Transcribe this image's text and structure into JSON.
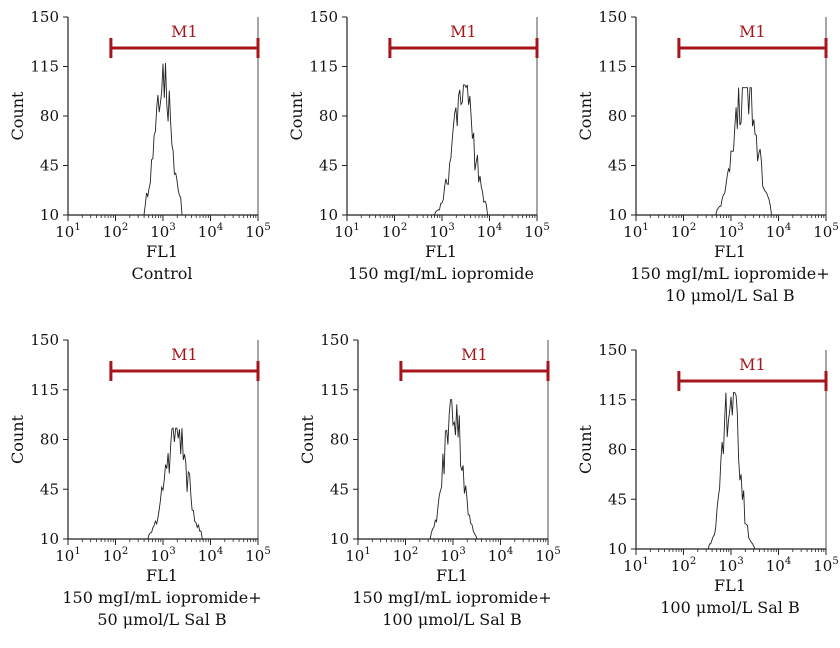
{
  "chart_data": [
    {
      "type": "histogram",
      "ylabel": "Count",
      "xlabel": "FL1",
      "caption": [
        "Control"
      ],
      "gate_label": "M1",
      "gate_range": [
        80,
        100000
      ],
      "xlim": [
        10,
        100000
      ],
      "xscale": "log",
      "ylim": [
        10,
        150
      ],
      "yticks": [
        10,
        45,
        80,
        115,
        150
      ],
      "xticks": [
        10,
        100,
        1000,
        10000,
        100000
      ],
      "xtick_labels": [
        {
          "base": "10",
          "exp": "1"
        },
        {
          "base": "10",
          "exp": "2"
        },
        {
          "base": "10",
          "exp": "3"
        },
        {
          "base": "10",
          "exp": "4"
        },
        {
          "base": "10",
          "exp": "5"
        }
      ],
      "peak_center": 1000,
      "peak_height": 118,
      "peak_width_decades": 0.17,
      "distribution_range": [
        400,
        2500
      ]
    },
    {
      "type": "histogram",
      "ylabel": "Count",
      "xlabel": "FL1",
      "caption": [
        "150 mgI/mL iopromide"
      ],
      "gate_label": "M1",
      "gate_range": [
        80,
        100000
      ],
      "xlim": [
        10,
        100000
      ],
      "xscale": "log",
      "ylim": [
        10,
        150
      ],
      "yticks": [
        10,
        45,
        80,
        115,
        150
      ],
      "xticks": [
        10,
        100,
        1000,
        10000,
        100000
      ],
      "xtick_labels": [
        {
          "base": "10",
          "exp": "1"
        },
        {
          "base": "10",
          "exp": "2"
        },
        {
          "base": "10",
          "exp": "3"
        },
        {
          "base": "10",
          "exp": "4"
        },
        {
          "base": "10",
          "exp": "5"
        }
      ],
      "peak_center": 2800,
      "peak_height": 102,
      "peak_width_decades": 0.21,
      "distribution_range": [
        700,
        9000
      ]
    },
    {
      "type": "histogram",
      "ylabel": "Count",
      "xlabel": "FL1",
      "caption": [
        "150 mgI/mL iopromide+",
        "10 μmol/L Sal B"
      ],
      "gate_label": "M1",
      "gate_range": [
        80,
        100000
      ],
      "xlim": [
        10,
        100000
      ],
      "xscale": "log",
      "ylim": [
        10,
        150
      ],
      "yticks": [
        10,
        45,
        80,
        115,
        150
      ],
      "xticks": [
        10,
        100,
        1000,
        10000,
        100000
      ],
      "xtick_labels": [
        {
          "base": "10",
          "exp": "1"
        },
        {
          "base": "10",
          "exp": "2"
        },
        {
          "base": "10",
          "exp": "3"
        },
        {
          "base": "10",
          "exp": "4"
        },
        {
          "base": "10",
          "exp": "5"
        }
      ],
      "peak_center": 2000,
      "peak_height": 100,
      "peak_width_decades": 0.23,
      "distribution_range": [
        500,
        7000
      ]
    },
    {
      "type": "histogram",
      "ylabel": "Count",
      "xlabel": "FL1",
      "caption": [
        "150 mgI/mL iopromide+",
        "50 μmol/L Sal B"
      ],
      "gate_label": "M1",
      "gate_range": [
        80,
        100000
      ],
      "xlim": [
        10,
        100000
      ],
      "xscale": "log",
      "ylim": [
        10,
        150
      ],
      "yticks": [
        10,
        45,
        80,
        115,
        150
      ],
      "xticks": [
        10,
        100,
        1000,
        10000,
        100000
      ],
      "xtick_labels": [
        {
          "base": "10",
          "exp": "1"
        },
        {
          "base": "10",
          "exp": "2"
        },
        {
          "base": "10",
          "exp": "3"
        },
        {
          "base": "10",
          "exp": "4"
        },
        {
          "base": "10",
          "exp": "5"
        }
      ],
      "peak_center": 1900,
      "peak_height": 88,
      "peak_width_decades": 0.22,
      "distribution_range": [
        500,
        6500
      ]
    },
    {
      "type": "histogram",
      "ylabel": "Count",
      "xlabel": "FL1",
      "caption": [
        "150 mgI/mL iopromide+",
        "100 μmol/L Sal B"
      ],
      "gate_label": "M1",
      "gate_range": [
        80,
        100000
      ],
      "xlim": [
        10,
        100000
      ],
      "xscale": "log",
      "ylim": [
        10,
        150
      ],
      "yticks": [
        10,
        45,
        80,
        115,
        150
      ],
      "xticks": [
        10,
        100,
        1000,
        10000,
        100000
      ],
      "xtick_labels": [
        {
          "base": "10",
          "exp": "1"
        },
        {
          "base": "10",
          "exp": "2"
        },
        {
          "base": "10",
          "exp": "3"
        },
        {
          "base": "10",
          "exp": "4"
        },
        {
          "base": "10",
          "exp": "5"
        }
      ],
      "peak_center": 1000,
      "peak_height": 108,
      "peak_width_decades": 0.18,
      "distribution_range": [
        350,
        3200
      ]
    },
    {
      "type": "histogram",
      "ylabel": "Count",
      "xlabel": "FL1",
      "caption": [
        "100 μmol/L Sal B"
      ],
      "gate_label": "M1",
      "gate_range": [
        80,
        100000
      ],
      "xlim": [
        10,
        100000
      ],
      "xscale": "log",
      "ylim": [
        10,
        150
      ],
      "yticks": [
        10,
        45,
        80,
        115,
        150
      ],
      "xticks": [
        10,
        100,
        1000,
        10000,
        100000
      ],
      "xtick_labels": [
        {
          "base": "10",
          "exp": "1"
        },
        {
          "base": "10",
          "exp": "2"
        },
        {
          "base": "10",
          "exp": "3"
        },
        {
          "base": "10",
          "exp": "4"
        },
        {
          "base": "10",
          "exp": "5"
        }
      ],
      "peak_center": 1000,
      "peak_height": 120,
      "peak_width_decades": 0.17,
      "distribution_range": [
        350,
        3200
      ]
    }
  ],
  "colors": {
    "gate": "#a5151b",
    "axis": "#222222",
    "histogram": "#222222",
    "text": "#111111"
  }
}
